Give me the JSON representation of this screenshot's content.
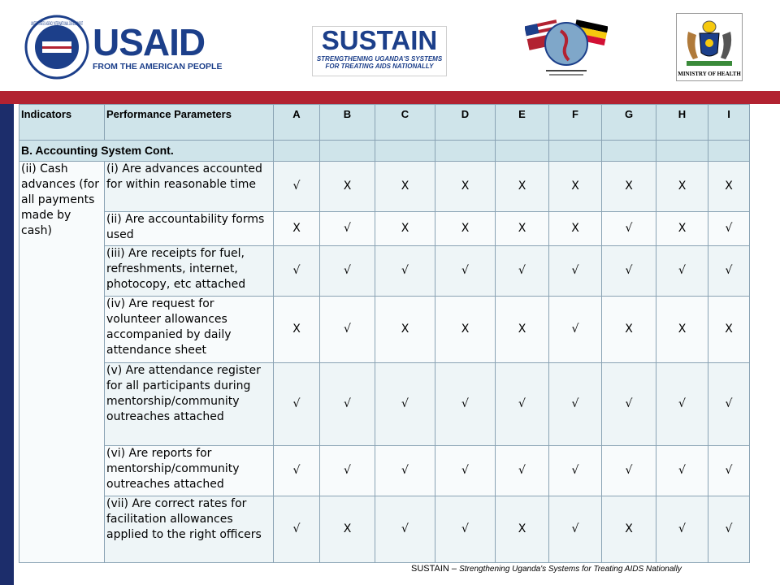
{
  "logos": {
    "usaid_name": "USAID",
    "usaid_tagline": "FROM THE AMERICAN PEOPLE",
    "usaid_seal": "UNITED STATES AGENCY INTERNATIONAL DEVELOPMENT",
    "sustain_name": "SUSTAIN",
    "sustain_tagline_1": "STRENGTHENING UGANDA'S SYSTEMS",
    "sustain_tagline_2": "FOR TREATING AIDS NATIONALLY",
    "ministry_caption": "MINISTRY OF HEALTH"
  },
  "table": {
    "headers": [
      "Indicators",
      "Performance Parameters",
      "A",
      "B",
      "C",
      "D",
      "E",
      "F",
      "G",
      "H",
      "I"
    ],
    "section_title": "B. Accounting System Cont.",
    "indicator": "(ii) Cash advances (for all payments made by cash)",
    "rows": [
      {
        "param": "(i) Are advances accounted for within reasonable time",
        "marks": [
          "√",
          "X",
          "X",
          "X",
          "X",
          "X",
          "X",
          "X",
          "X"
        ]
      },
      {
        "param": "(ii) Are accountability forms used",
        "marks": [
          "X",
          "√",
          "X",
          "X",
          "X",
          "X",
          "√",
          "X",
          "√"
        ]
      },
      {
        "param": "(iii) Are receipts for fuel, refreshments, internet, photocopy, etc attached",
        "marks": [
          "√",
          "√",
          "√",
          "√",
          "√",
          "√",
          "√",
          "√",
          "√"
        ]
      },
      {
        "param": "(iv) Are request for volunteer allowances accompanied by daily attendance sheet",
        "marks": [
          "X",
          "√",
          "X",
          "X",
          "X",
          "√",
          "X",
          "X",
          "X"
        ]
      },
      {
        "param": "(v) Are attendance register for all participants during mentorship/community outreaches attached",
        "marks": [
          "√",
          "√",
          "√",
          "√",
          "√",
          "√",
          "√",
          "√",
          "√"
        ]
      },
      {
        "param": "(vi) Are reports for mentorship/community outreaches attached",
        "marks": [
          "√",
          "√",
          "√",
          "√",
          "√",
          "√",
          "√",
          "√",
          "√"
        ]
      },
      {
        "param": "(vii) Are correct rates for facilitation allowances applied to the right officers",
        "marks": [
          "√",
          "X",
          "√",
          "√",
          "X",
          "√",
          "X",
          "√",
          "√"
        ]
      }
    ]
  },
  "footer": {
    "brand": "SUSTAIN",
    "separator": "–",
    "tagline": "Strengthening Uganda's Systems for Treating AIDS Nationally"
  },
  "colors": {
    "red_bar": "#b22231",
    "left_bar": "#1c2d6b",
    "header_fill": "#cfe4ea"
  }
}
